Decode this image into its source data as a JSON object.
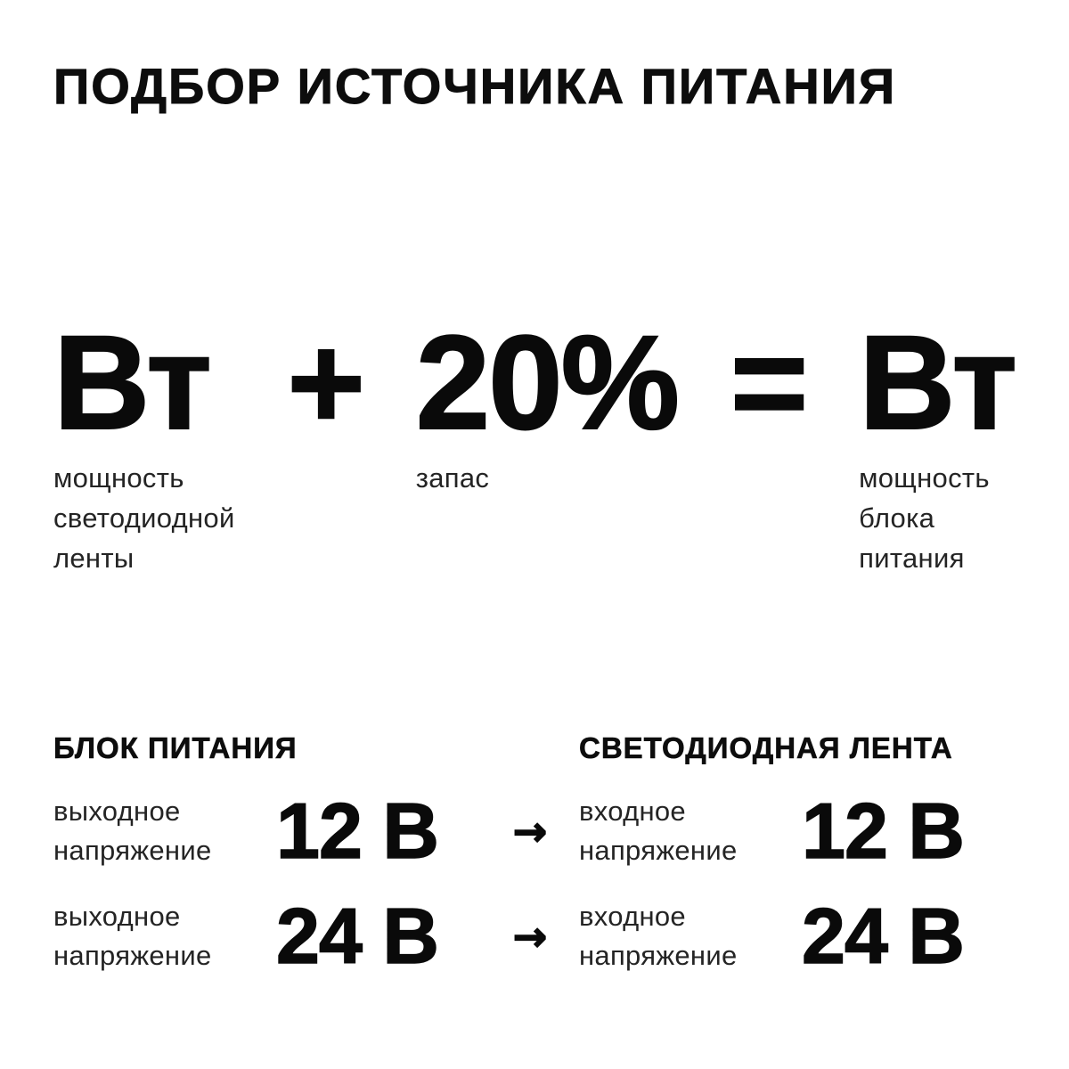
{
  "title": "ПОДБОР ИСТОЧНИКА ПИТАНИЯ",
  "formula": {
    "term1": {
      "value": "Вт",
      "label": "мощность\nсветодиодной\nленты"
    },
    "op_plus": "+",
    "term2": {
      "value": "20%",
      "label": "запас"
    },
    "op_equals": "=",
    "term3": {
      "value": "Вт",
      "label": "мощность\nблока\nпитания"
    }
  },
  "table": {
    "left_header": "БЛОК ПИТАНИЯ",
    "right_header": "СВЕТОДИОДНАЯ ЛЕНТА",
    "arrow": "→",
    "rows": [
      {
        "left_label": "выходное\nнапряжение",
        "left_value": "12 В",
        "right_label": "входное\nнапряжение",
        "right_value": "12 В"
      },
      {
        "left_label": "выходное\nнапряжение",
        "left_value": "24 В",
        "right_label": "входное\nнапряжение",
        "right_value": "24 В"
      }
    ]
  }
}
